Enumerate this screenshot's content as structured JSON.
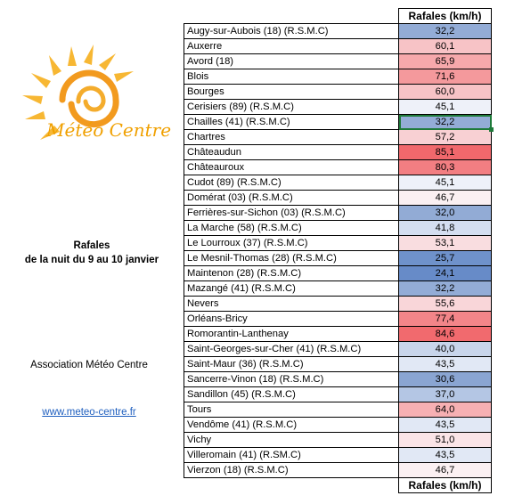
{
  "logo": {
    "text": "Météo Centre"
  },
  "caption": {
    "line1": "Rafales",
    "line2": "de la nuit du 9 au 10 janvier"
  },
  "association": "Association Météo Centre",
  "website": "www.meteo-centre.fr",
  "table": {
    "header": "Rafales (km/h)",
    "footer": "Rafales (km/h)",
    "rows": [
      {
        "name": "Augy-sur-Aubois (18) (R.S.M.C)",
        "value": "32,2",
        "color": "#93acd6"
      },
      {
        "name": "Auxerre",
        "value": "60,1",
        "color": "#f7c3c6"
      },
      {
        "name": "Avord (18)",
        "value": "65,9",
        "color": "#f6a8ab"
      },
      {
        "name": "Blois",
        "value": "71,6",
        "color": "#f4999c"
      },
      {
        "name": "Bourges",
        "value": "60,0",
        "color": "#f7c3c6"
      },
      {
        "name": "Cerisiers (89) (R.S.M.C)",
        "value": "45,1",
        "color": "#eef1f9"
      },
      {
        "name": "Chailles (41) (R.S.M.C)",
        "value": "32,2",
        "color": "#93acd6"
      },
      {
        "name": "Chartres",
        "value": "57,2",
        "color": "#f8d0d3"
      },
      {
        "name": "Châteaudun",
        "value": "85,1",
        "color": "#f1686c"
      },
      {
        "name": "Châteauroux",
        "value": "80,3",
        "color": "#f27e82"
      },
      {
        "name": "Cudot (89) (R.S.M.C)",
        "value": "45,1",
        "color": "#eef1f9"
      },
      {
        "name": "Domérat (03) (R.S.M.C)",
        "value": "46,7",
        "color": "#fbf0f2"
      },
      {
        "name": "Ferrières-sur-Sichon (03) (R.S.M.C)",
        "value": "32,0",
        "color": "#92abd5"
      },
      {
        "name": "La Marche (58) (R.S.M.C)",
        "value": "41,8",
        "color": "#d4def0"
      },
      {
        "name": "Le Lourroux (37) (R.S.M.C)",
        "value": "53,1",
        "color": "#f9dde0"
      },
      {
        "name": "Le Mesnil-Thomas (28) (R.S.M.C)",
        "value": "25,7",
        "color": "#6f92cb"
      },
      {
        "name": "Maintenon (28) (R.S.M.C)",
        "value": "24,1",
        "color": "#678bc8"
      },
      {
        "name": "Mazangé (41) (R.S.M.C)",
        "value": "32,2",
        "color": "#93acd6"
      },
      {
        "name": "Nevers",
        "value": "55,6",
        "color": "#f9d6d9"
      },
      {
        "name": "Orléans-Bricy",
        "value": "77,4",
        "color": "#f38589"
      },
      {
        "name": "Romorantin-Lanthenay",
        "value": "84,6",
        "color": "#f16a6e"
      },
      {
        "name": "Saint-Georges-sur-Cher (41) (R.S.M.C)",
        "value": "40,0",
        "color": "#c8d5eb"
      },
      {
        "name": "Saint-Maur (36) (R.S.M.C)",
        "value": "43,5",
        "color": "#e1e8f5"
      },
      {
        "name": "Sancerre-Vinon  (18) (R.S.M.C)",
        "value": "30,6",
        "color": "#8aa5d2"
      },
      {
        "name": "Sandillon (45) (R.S.M.C)",
        "value": "37,0",
        "color": "#b4c6e4"
      },
      {
        "name": "Tours",
        "value": "64,0",
        "color": "#f6b0b3"
      },
      {
        "name": "Vendôme (41) (R.S.M.C)",
        "value": "43,5",
        "color": "#e1e8f5"
      },
      {
        "name": "Vichy",
        "value": "51,0",
        "color": "#fae4e7"
      },
      {
        "name": "Villeromain (41) (R.SM.C)",
        "value": "43,5",
        "color": "#e1e8f5"
      },
      {
        "name": "Vierzon (18) (R.S.M.C)",
        "value": "46,7",
        "color": "#fbf0f2"
      }
    ]
  }
}
